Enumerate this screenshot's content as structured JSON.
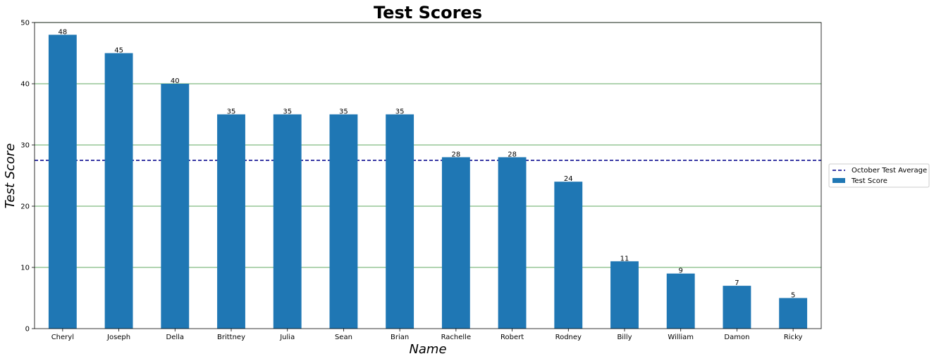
{
  "chart_data": {
    "type": "bar",
    "title": "Test Scores",
    "xlabel": "Name",
    "ylabel": "Test Score",
    "categories": [
      "Cheryl",
      "Joseph",
      "Della",
      "Brittney",
      "Julia",
      "Sean",
      "Brian",
      "Rachelle",
      "Robert",
      "Rodney",
      "Billy",
      "William",
      "Damon",
      "Ricky"
    ],
    "series": [
      {
        "name": "Test Score",
        "values": [
          48,
          45,
          40,
          35,
          35,
          35,
          35,
          28,
          28,
          24,
          11,
          9,
          7,
          5
        ],
        "color": "#1f77b4"
      }
    ],
    "reference_line": {
      "name": "October Test Average",
      "value": 27.5,
      "color": "#00008b",
      "style": "dashed"
    },
    "data_labels": [
      "48",
      "45",
      "40",
      "35",
      "35",
      "35",
      "35",
      "28",
      "28",
      "24",
      "11",
      "9",
      "7",
      "5"
    ],
    "ylim": [
      0,
      50
    ],
    "yticks": [
      "0",
      "10",
      "20",
      "30",
      "40",
      "50"
    ],
    "grid": {
      "axis": "y",
      "color": "#2e8b2e"
    },
    "legend": {
      "placement": "outside-right",
      "entries": [
        "October Test Average",
        "Test Score"
      ]
    }
  }
}
